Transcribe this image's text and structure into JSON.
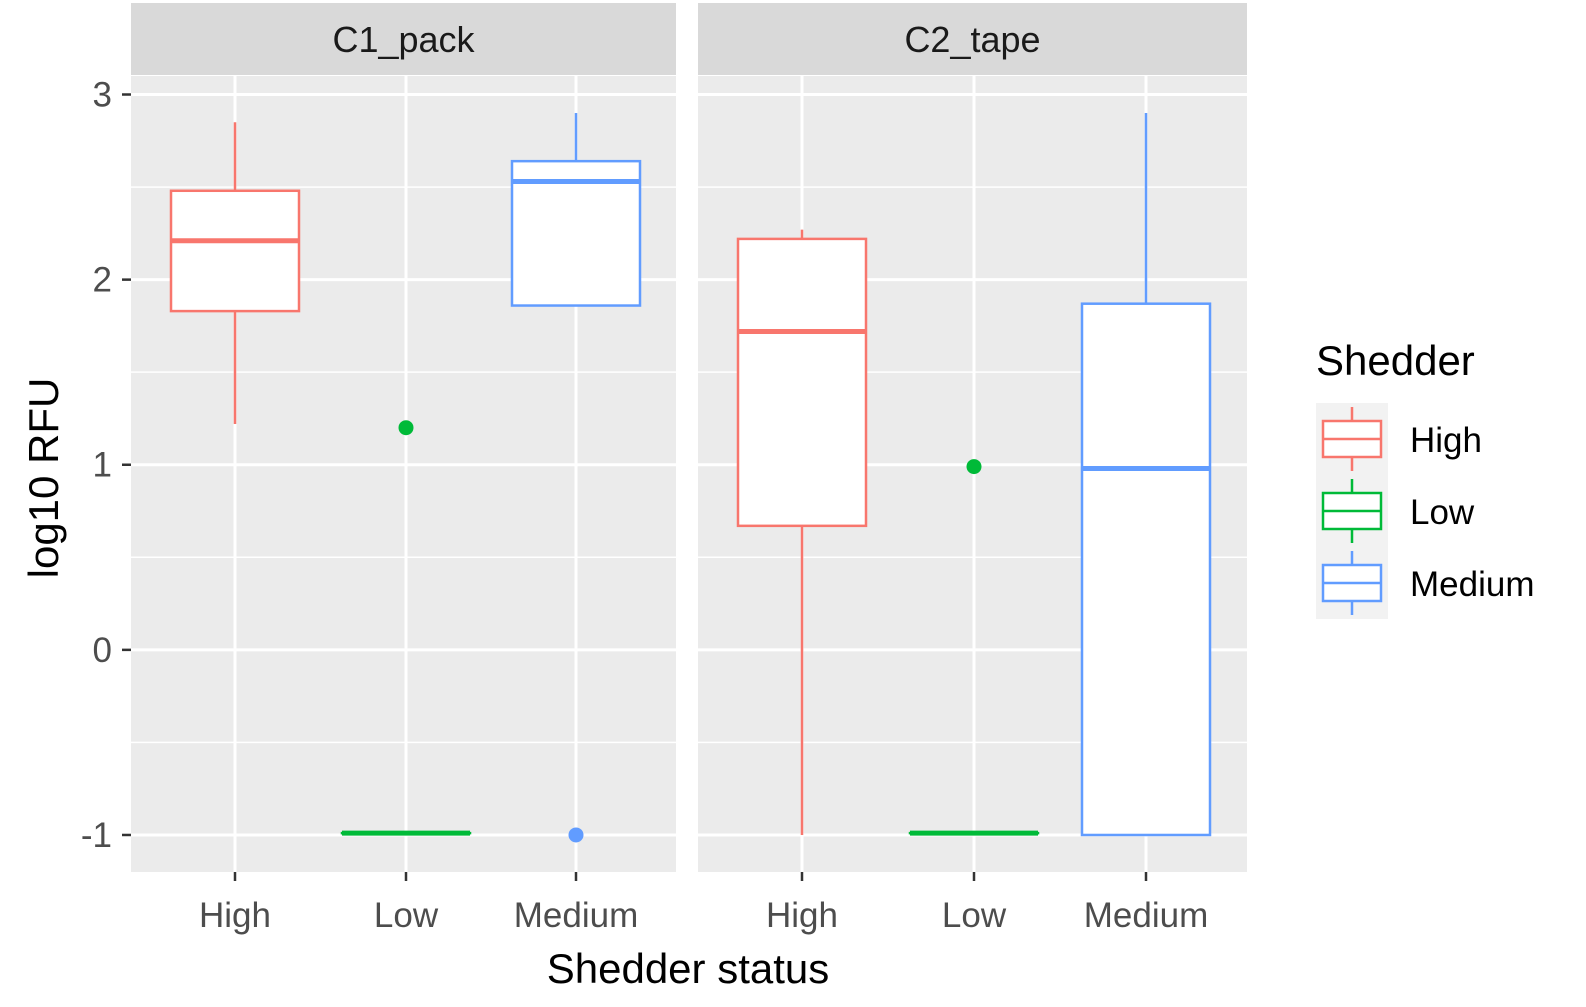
{
  "chart_data": {
    "type": "boxplot",
    "xlabel": "Shedder status",
    "ylabel": "log10 RFU",
    "categories": [
      "High",
      "Low",
      "Medium"
    ],
    "ylim": [
      -1.2,
      3.1
    ],
    "yticks": [
      -1,
      0,
      1,
      2,
      3
    ],
    "grid": true,
    "legend": {
      "title": "Shedder",
      "position": "right",
      "entries": [
        {
          "name": "High",
          "color": "#F8766D"
        },
        {
          "name": "Low",
          "color": "#00BA38"
        },
        {
          "name": "Medium",
          "color": "#619CFF"
        }
      ]
    },
    "panels": [
      {
        "name": "C1_pack",
        "boxes": [
          {
            "category": "High",
            "whisker_low": 1.22,
            "q1": 1.83,
            "median": 2.21,
            "q3": 2.48,
            "whisker_high": 2.85,
            "outliers": []
          },
          {
            "category": "Low",
            "whisker_low": -0.99,
            "q1": -0.99,
            "median": -0.99,
            "q3": -0.99,
            "whisker_high": -0.99,
            "outliers": [
              1.2
            ]
          },
          {
            "category": "Medium",
            "whisker_low": 1.86,
            "q1": 1.86,
            "median": 2.53,
            "q3": 2.64,
            "whisker_high": 2.9,
            "outliers": [
              -1.0
            ]
          }
        ]
      },
      {
        "name": "C2_tape",
        "boxes": [
          {
            "category": "High",
            "whisker_low": -1.0,
            "q1": 0.67,
            "median": 1.72,
            "q3": 2.22,
            "whisker_high": 2.27,
            "outliers": []
          },
          {
            "category": "Low",
            "whisker_low": -0.99,
            "q1": -0.99,
            "median": -0.99,
            "q3": -0.99,
            "whisker_high": -0.99,
            "outliers": [
              0.99
            ]
          },
          {
            "category": "Medium",
            "whisker_low": -1.0,
            "q1": -1.0,
            "median": 0.98,
            "q3": 1.87,
            "whisker_high": 2.9,
            "outliers": []
          }
        ]
      }
    ]
  }
}
